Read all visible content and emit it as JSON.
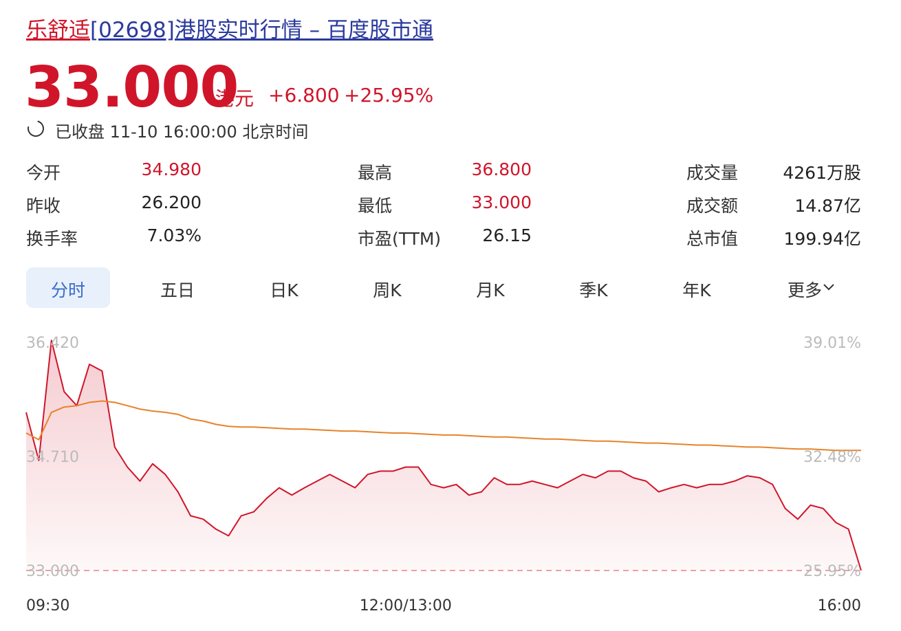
{
  "header": {
    "name": "乐舒适",
    "title": "[02698]港股实时行情 – 百度股市通"
  },
  "quote": {
    "price": "33.000",
    "currency": "港元",
    "change": "+6.800",
    "change_pct": "+25.95%",
    "status": "已收盘 11-10 16:00:00 北京时间"
  },
  "stats": [
    [
      {
        "label": "今开",
        "value": "34.980"
      },
      {
        "label": "最高",
        "value": "36.800"
      },
      {
        "label": "成交量",
        "value": "4261万股"
      }
    ],
    [
      {
        "label": "昨收",
        "value": "26.200"
      },
      {
        "label": "最低",
        "value": "33.000"
      },
      {
        "label": "成交额",
        "value": "14.87亿"
      }
    ],
    [
      {
        "label": "换手率",
        "value": "7.03%"
      },
      {
        "label": "市盈(TTM)",
        "value": "26.15"
      },
      {
        "label": "总市值",
        "value": "199.94亿"
      }
    ]
  ],
  "tabs": [
    "分时",
    "五日",
    "日K",
    "周K",
    "月K",
    "季K",
    "年K",
    "更多"
  ],
  "chart_data": {
    "type": "line",
    "x": [
      0,
      5,
      10,
      15,
      20,
      25,
      30,
      35,
      40,
      45,
      50,
      55,
      60,
      65,
      70,
      75,
      80,
      85,
      90,
      95,
      100,
      105,
      110,
      115,
      120,
      125,
      130,
      135,
      140,
      145,
      150,
      155,
      160,
      165,
      170,
      175,
      180,
      185,
      190,
      195,
      200,
      205,
      210,
      215,
      220,
      225,
      230,
      235,
      240,
      245,
      250,
      255,
      260,
      265,
      270,
      275,
      280,
      285,
      290,
      295,
      300,
      305,
      310,
      315,
      320,
      325,
      330
    ],
    "series": [
      {
        "color": "#d0152a",
        "values": [
          35.37,
          34.65,
          36.45,
          35.68,
          35.47,
          36.09,
          35.99,
          34.85,
          34.55,
          34.34,
          34.6,
          34.44,
          34.18,
          33.82,
          33.77,
          33.62,
          33.52,
          33.82,
          33.88,
          34.08,
          34.24,
          34.13,
          34.24,
          34.34,
          34.44,
          34.34,
          34.24,
          34.44,
          34.49,
          34.49,
          34.55,
          34.55,
          34.29,
          34.24,
          34.29,
          34.13,
          34.18,
          34.39,
          34.29,
          34.29,
          34.34,
          34.29,
          34.24,
          34.34,
          34.44,
          34.39,
          34.49,
          34.49,
          34.39,
          34.34,
          34.18,
          34.24,
          34.29,
          34.24,
          34.29,
          34.29,
          34.34,
          34.42,
          34.39,
          34.29,
          33.93,
          33.77,
          33.98,
          33.93,
          33.72,
          33.62,
          33.0
        ]
      },
      {
        "color": "#e8822a",
        "values": [
          35.06,
          34.96,
          35.37,
          35.45,
          35.47,
          35.52,
          35.54,
          35.52,
          35.47,
          35.42,
          35.39,
          35.37,
          35.34,
          35.27,
          35.24,
          35.19,
          35.16,
          35.15,
          35.15,
          35.14,
          35.13,
          35.12,
          35.12,
          35.11,
          35.1,
          35.09,
          35.09,
          35.08,
          35.07,
          35.06,
          35.06,
          35.05,
          35.04,
          35.03,
          35.03,
          35.02,
          35.01,
          35.0,
          35.0,
          34.99,
          34.98,
          34.97,
          34.97,
          34.96,
          34.95,
          34.94,
          34.94,
          34.93,
          34.92,
          34.91,
          34.91,
          34.9,
          34.89,
          34.88,
          34.88,
          34.87,
          34.86,
          34.85,
          34.85,
          34.84,
          34.83,
          34.82,
          34.82,
          34.81,
          34.8,
          34.8,
          34.8
        ]
      }
    ],
    "xlim": [
      0,
      330
    ],
    "xticks": [
      {
        "value": 0,
        "label": "09:30"
      },
      {
        "value": 150,
        "label": "12:00/13:00"
      },
      {
        "value": 330,
        "label": "16:00"
      }
    ],
    "ylim": [
      33.0,
      36.42
    ],
    "yticks": [
      {
        "value": 36.42,
        "label": "36.420"
      },
      {
        "value": 34.71,
        "label": "34.710"
      },
      {
        "value": 33.0,
        "label": "33.000"
      }
    ],
    "y2lim": [
      25.95,
      39.01
    ],
    "y2ticks": [
      {
        "value": 39.01,
        "label": "39.01%"
      },
      {
        "value": 32.48,
        "label": "32.48%"
      },
      {
        "value": 25.95,
        "label": "25.95%"
      }
    ]
  }
}
